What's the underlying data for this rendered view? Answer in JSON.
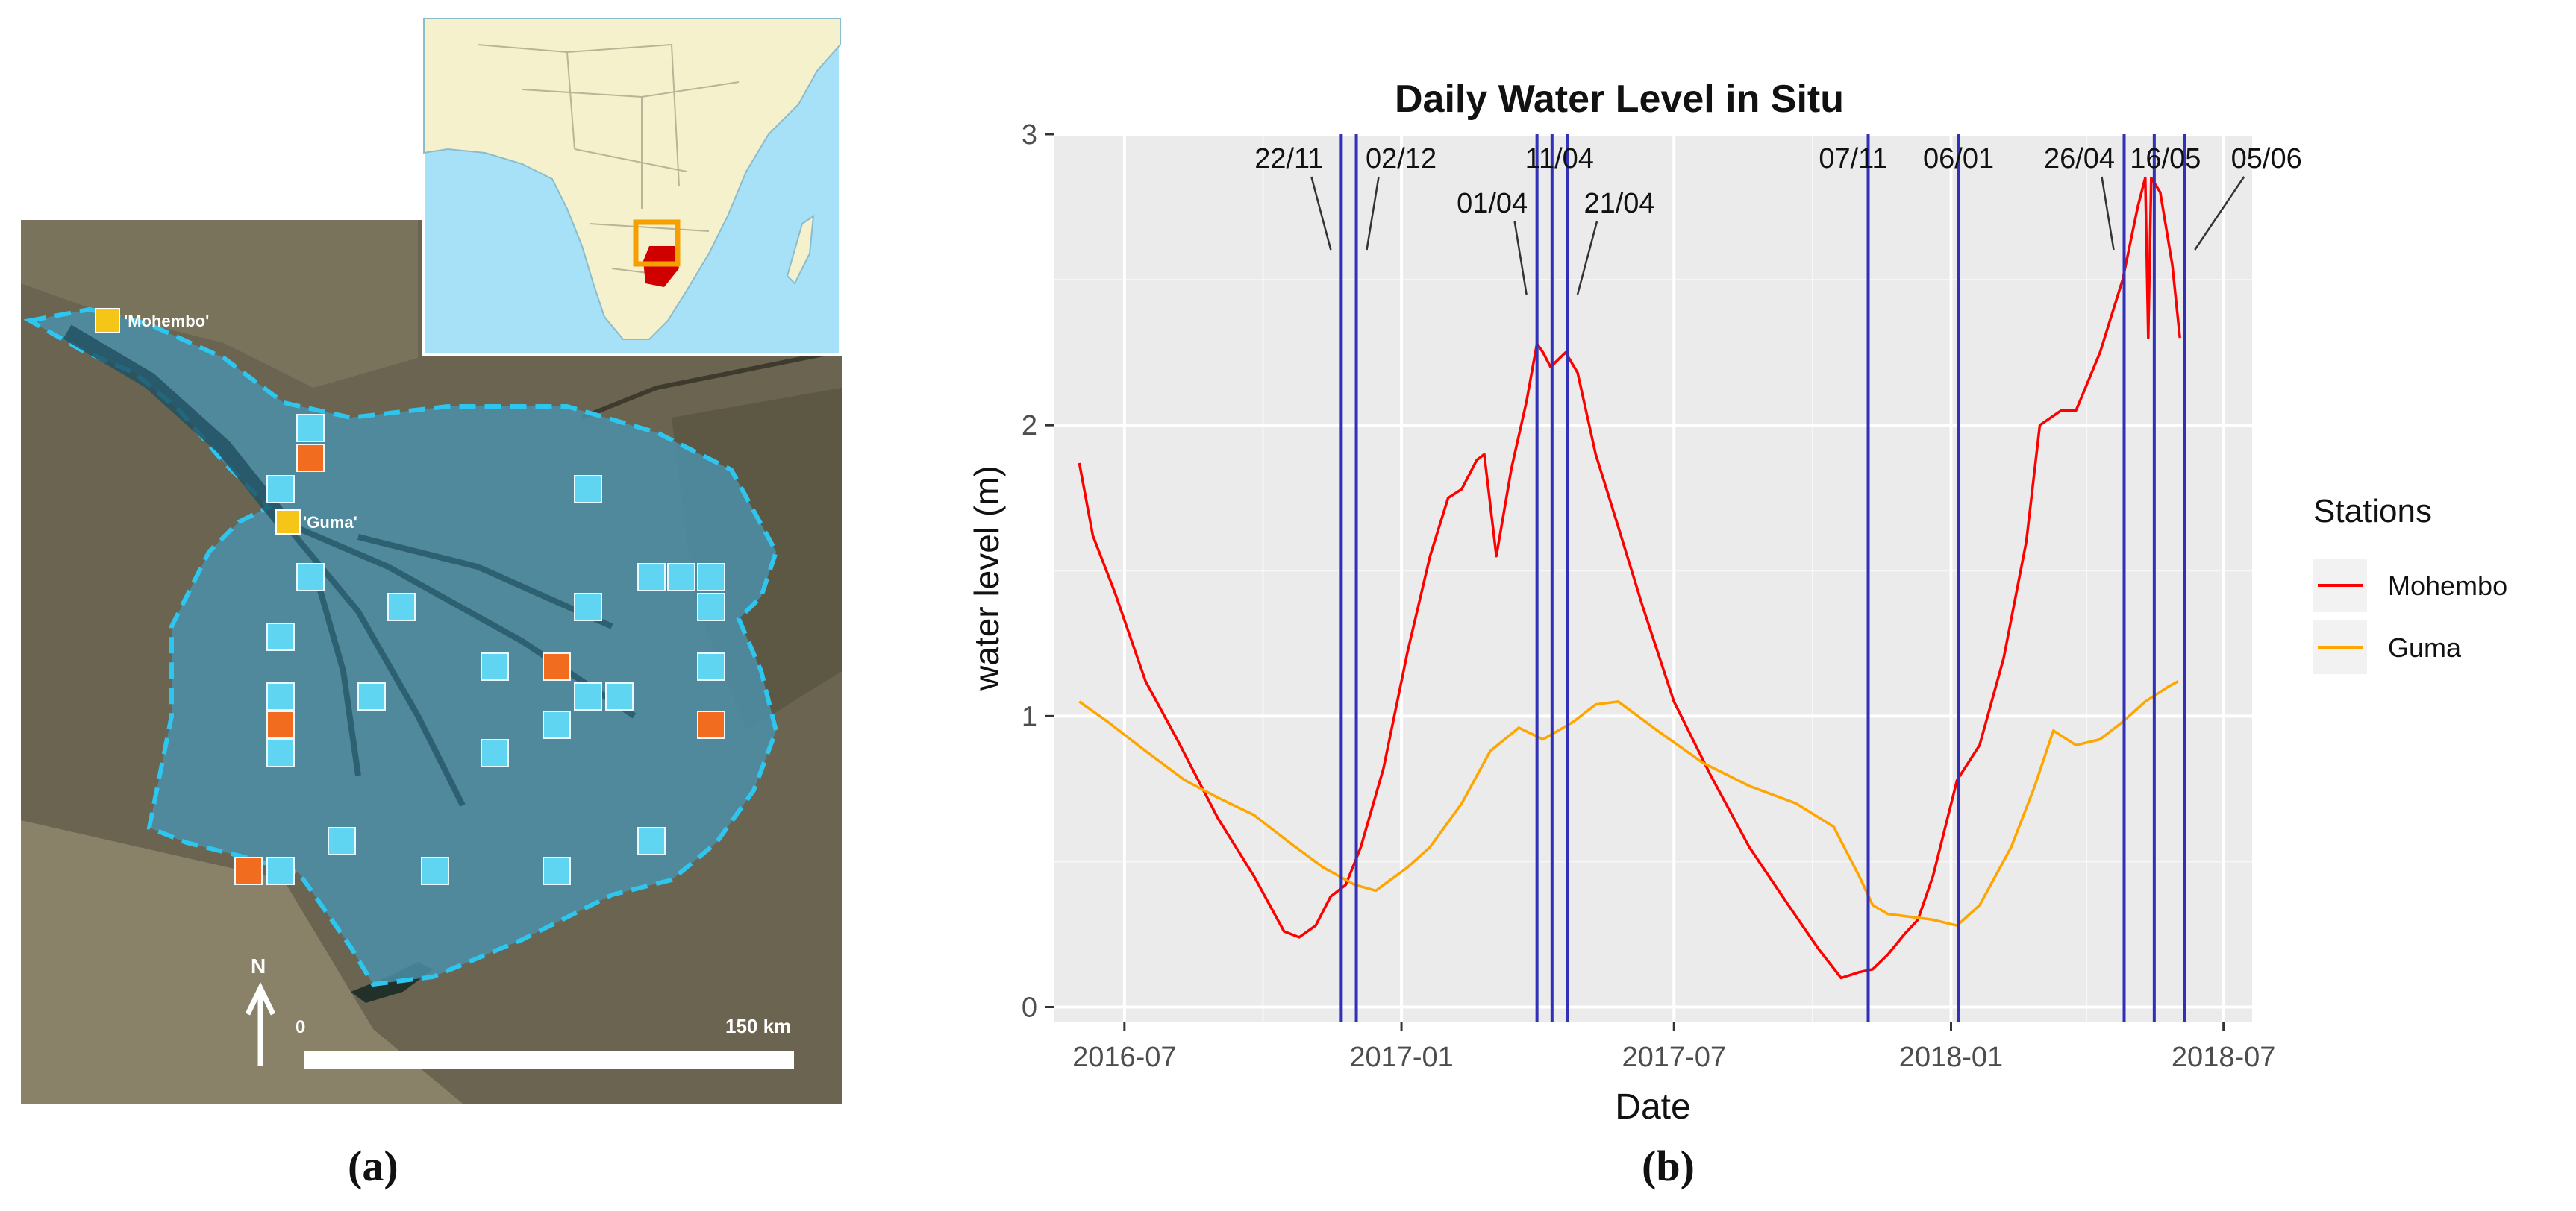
{
  "panel_a": {
    "caption": "(a)",
    "labels": {
      "mohembo": "'Mohembo'",
      "guma": "'Guma'"
    },
    "north_label": "N",
    "scale_start": "0",
    "scale_end": "150 km",
    "colors": {
      "satellite": "#6a6450",
      "delta": "#4a8fa8",
      "boundary": "#2ec6ef",
      "blue_square": "#5fd5f2",
      "orange_square": "#f26c1f",
      "gauge_square": "#f5c518",
      "inset_ocean": "#a6e1f7",
      "inset_land": "#f4f1cc",
      "inset_highlight": "#d00000",
      "inset_box": "#f5a000"
    }
  },
  "panel_b": {
    "caption": "(b)",
    "chart_data": {
      "type": "line",
      "title": "Daily Water Level in Situ",
      "xlabel": "Date",
      "ylabel": "water level (m)",
      "x_ticks": [
        "2016-07",
        "2017-01",
        "2017-07",
        "2018-01",
        "2018-07"
      ],
      "y_ticks": [
        0,
        1,
        2,
        3
      ],
      "xlim": [
        "2016-05-15",
        "2018-07-20"
      ],
      "ylim": [
        -0.05,
        3.0
      ],
      "grid": true,
      "legend": {
        "title": "Stations",
        "position": "right"
      },
      "series": [
        {
          "name": "Mohembo",
          "color": "#ff0000",
          "points": [
            [
              "2016-06-01",
              1.87
            ],
            [
              "2016-06-10",
              1.62
            ],
            [
              "2016-06-25",
              1.42
            ],
            [
              "2016-07-15",
              1.12
            ],
            [
              "2016-08-05",
              0.92
            ],
            [
              "2016-09-01",
              0.65
            ],
            [
              "2016-09-25",
              0.45
            ],
            [
              "2016-10-15",
              0.26
            ],
            [
              "2016-10-25",
              0.24
            ],
            [
              "2016-11-05",
              0.28
            ],
            [
              "2016-11-15",
              0.38
            ],
            [
              "2016-11-25",
              0.42
            ],
            [
              "2016-12-05",
              0.55
            ],
            [
              "2016-12-20",
              0.82
            ],
            [
              "2017-01-05",
              1.22
            ],
            [
              "2017-01-20",
              1.55
            ],
            [
              "2017-02-01",
              1.75
            ],
            [
              "2017-02-10",
              1.78
            ],
            [
              "2017-02-20",
              1.88
            ],
            [
              "2017-02-25",
              1.9
            ],
            [
              "2017-03-05",
              1.55
            ],
            [
              "2017-03-15",
              1.85
            ],
            [
              "2017-03-25",
              2.08
            ],
            [
              "2017-04-01",
              2.28
            ],
            [
              "2017-04-05",
              2.25
            ],
            [
              "2017-04-10",
              2.2
            ],
            [
              "2017-04-20",
              2.25
            ],
            [
              "2017-04-28",
              2.18
            ],
            [
              "2017-05-10",
              1.9
            ],
            [
              "2017-05-25",
              1.65
            ],
            [
              "2017-06-10",
              1.38
            ],
            [
              "2017-07-01",
              1.05
            ],
            [
              "2017-07-25",
              0.8
            ],
            [
              "2017-08-20",
              0.55
            ],
            [
              "2017-09-15",
              0.35
            ],
            [
              "2017-10-05",
              0.2
            ],
            [
              "2017-10-20",
              0.1
            ],
            [
              "2017-11-01",
              0.12
            ],
            [
              "2017-11-10",
              0.13
            ],
            [
              "2017-11-20",
              0.18
            ],
            [
              "2017-12-01",
              0.25
            ],
            [
              "2017-12-10",
              0.3
            ],
            [
              "2017-12-20",
              0.45
            ],
            [
              "2018-01-05",
              0.78
            ],
            [
              "2018-01-20",
              0.9
            ],
            [
              "2018-02-05",
              1.2
            ],
            [
              "2018-02-20",
              1.6
            ],
            [
              "2018-03-01",
              2.0
            ],
            [
              "2018-03-15",
              2.05
            ],
            [
              "2018-03-25",
              2.05
            ],
            [
              "2018-04-10",
              2.25
            ],
            [
              "2018-04-25",
              2.5
            ],
            [
              "2018-05-05",
              2.75
            ],
            [
              "2018-05-10",
              2.85
            ],
            [
              "2018-05-12",
              2.3
            ],
            [
              "2018-05-14",
              2.85
            ],
            [
              "2018-05-20",
              2.8
            ],
            [
              "2018-05-28",
              2.55
            ],
            [
              "2018-06-02",
              2.3
            ]
          ]
        },
        {
          "name": "Guma",
          "color": "#ffa500",
          "points": [
            [
              "2016-06-01",
              1.05
            ],
            [
              "2016-06-20",
              0.98
            ],
            [
              "2016-07-15",
              0.88
            ],
            [
              "2016-08-10",
              0.78
            ],
            [
              "2016-09-01",
              0.72
            ],
            [
              "2016-09-25",
              0.66
            ],
            [
              "2016-10-20",
              0.56
            ],
            [
              "2016-11-10",
              0.48
            ],
            [
              "2016-12-01",
              0.42
            ],
            [
              "2016-12-15",
              0.4
            ],
            [
              "2017-01-05",
              0.48
            ],
            [
              "2017-01-20",
              0.55
            ],
            [
              "2017-02-10",
              0.7
            ],
            [
              "2017-03-01",
              0.88
            ],
            [
              "2017-03-20",
              0.96
            ],
            [
              "2017-04-05",
              0.92
            ],
            [
              "2017-04-25",
              0.98
            ],
            [
              "2017-05-10",
              1.04
            ],
            [
              "2017-05-25",
              1.05
            ],
            [
              "2017-06-20",
              0.95
            ],
            [
              "2017-07-20",
              0.84
            ],
            [
              "2017-08-20",
              0.76
            ],
            [
              "2017-09-20",
              0.7
            ],
            [
              "2017-10-15",
              0.62
            ],
            [
              "2017-11-01",
              0.45
            ],
            [
              "2017-11-10",
              0.35
            ],
            [
              "2017-11-20",
              0.32
            ],
            [
              "2017-12-20",
              0.3
            ],
            [
              "2018-01-05",
              0.28
            ],
            [
              "2018-01-20",
              0.35
            ],
            [
              "2018-02-10",
              0.55
            ],
            [
              "2018-02-25",
              0.75
            ],
            [
              "2018-03-10",
              0.95
            ],
            [
              "2018-03-25",
              0.9
            ],
            [
              "2018-04-10",
              0.92
            ],
            [
              "2018-04-25",
              0.98
            ],
            [
              "2018-05-10",
              1.05
            ],
            [
              "2018-05-25",
              1.1
            ],
            [
              "2018-06-01",
              1.12
            ]
          ]
        }
      ],
      "vlines": {
        "color": "#3030b8",
        "dates": [
          "2016-11-22",
          "2016-12-02",
          "2017-04-01",
          "2017-04-11",
          "2017-04-21",
          "2017-11-07",
          "2018-01-06",
          "2018-04-26",
          "2018-05-16",
          "2018-06-05"
        ]
      },
      "annotations": [
        "22/11",
        "02/12",
        "01/04",
        "11/04",
        "21/04",
        "07/11",
        "06/01",
        "26/04",
        "16/05",
        "05/06"
      ]
    }
  }
}
